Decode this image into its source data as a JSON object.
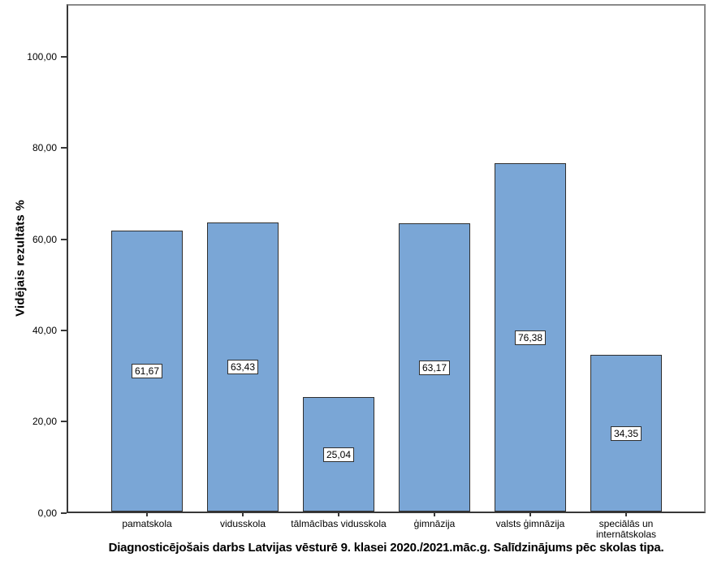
{
  "chart_data": {
    "type": "bar",
    "caption": "Diagnosticējošais darbs Latvijas vēsturē 9. klasei 2020./2021.māc.g. Salīdzinājums pēc skolas tipa.",
    "ylabel": "Vidējais rezultāts %",
    "categories": [
      "pamatskola",
      "vidusskola",
      "tālmācības vidusskola",
      "ģimnāzija",
      "valsts ģimnāzija",
      "speciālās un\ninternātskolas"
    ],
    "values": [
      61.67,
      63.43,
      25.04,
      63.17,
      76.38,
      34.35
    ],
    "value_labels": [
      "61,67",
      "63,43",
      "25,04",
      "63,17",
      "76,38",
      "34,35"
    ],
    "yticks": {
      "values": [
        0,
        20,
        40,
        60,
        80,
        100
      ],
      "labels": [
        "0,00",
        "20,00",
        "40,00",
        "60,00",
        "80,00",
        "100,00"
      ]
    },
    "ylim": [
      0,
      111.5
    ],
    "grid": false,
    "legend": "none",
    "colors": {
      "bar_fill": "#7aa6d6",
      "bar_border": "#2f2f2f",
      "axis": "#383838",
      "frame": "#8a8a8a",
      "label_box_bg": "#ffffff",
      "text": "#000000"
    }
  }
}
